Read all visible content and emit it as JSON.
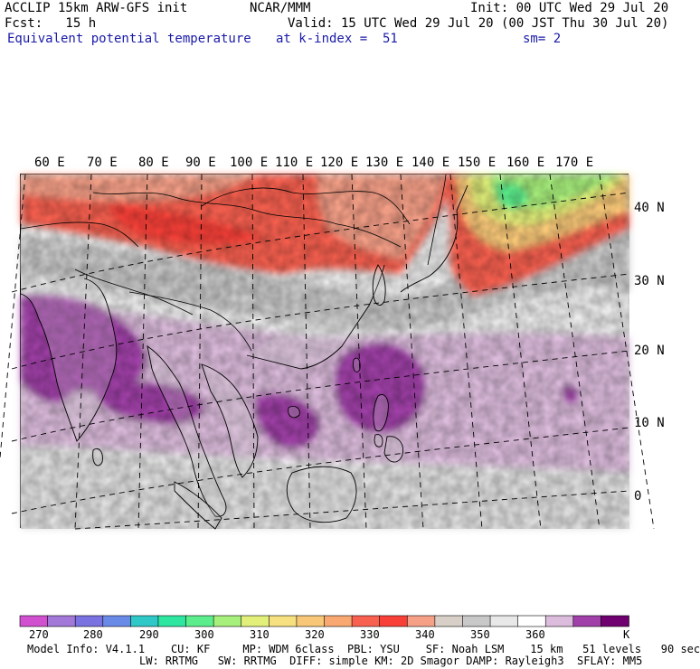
{
  "header": {
    "model_line": "ACCLIP 15km ARW-GFS init",
    "fcst_line": "Fcst:   15 h",
    "org": "NCAR/MMM",
    "init_line": "Init: 00 UTC Wed 29 Jul 20",
    "valid_line": "Valid: 15 UTC Wed 29 Jul 20 (00 JST Thu 30 Jul 20)",
    "field": "Equivalent potential temperature",
    "level": "at k-index =  51",
    "smoothing": "sm= 2"
  },
  "map": {
    "lon_labels": [
      "60 E",
      "70 E",
      "80 E",
      "90 E",
      "100 E",
      "110 E",
      "120 E",
      "130 E",
      "140 E",
      "150 E",
      "160 E",
      "170 E"
    ],
    "lat_labels": [
      "40 N",
      "30 N",
      "20 N",
      "10 N",
      "0"
    ],
    "projection": "Mercator",
    "extent": {
      "lon": [
        56,
        180
      ],
      "lat": [
        -5,
        45
      ]
    },
    "regions": [
      {
        "name": "northern-warm-band",
        "value_K": 330
      },
      {
        "name": "northwest-pacific-green",
        "value_K": 300
      },
      {
        "name": "subtropical-grey-belt",
        "value_K": 350
      },
      {
        "name": "bay-of-bengal-purple",
        "value_K": 370
      },
      {
        "name": "philippine-sea-purple",
        "value_K": 370
      },
      {
        "name": "maritime-lilac",
        "value_K": 365
      }
    ]
  },
  "colorbar": {
    "unit": "K",
    "ticks": [
      "270",
      "280",
      "290",
      "300",
      "310",
      "320",
      "330",
      "340",
      "350",
      "360"
    ],
    "colors": [
      "#d050d0",
      "#a278d8",
      "#7a72e0",
      "#6a8ae8",
      "#2ec8c8",
      "#2ee6a0",
      "#5cee8c",
      "#a8f07c",
      "#e2f07a",
      "#f6e080",
      "#f8c878",
      "#f8a870",
      "#f86050",
      "#f84038",
      "#f6a088",
      "#d8d0c8",
      "#c8c8c8",
      "#e8e8e8",
      "#ffffff",
      "#dcbcdc",
      "#a040a8",
      "#700070"
    ]
  },
  "footer": {
    "line1": "Model Info: V4.1.1    CU: KF     MP: WDM 6class  PBL: YSU    SF: Noah LSM    15 km   51 levels   90 sec",
    "line2": "LW: RRTMG   SW: RRTMG  DIFF: simple KM: 2D Smagor DAMP: Rayleigh3  SFLAY: MM5"
  }
}
